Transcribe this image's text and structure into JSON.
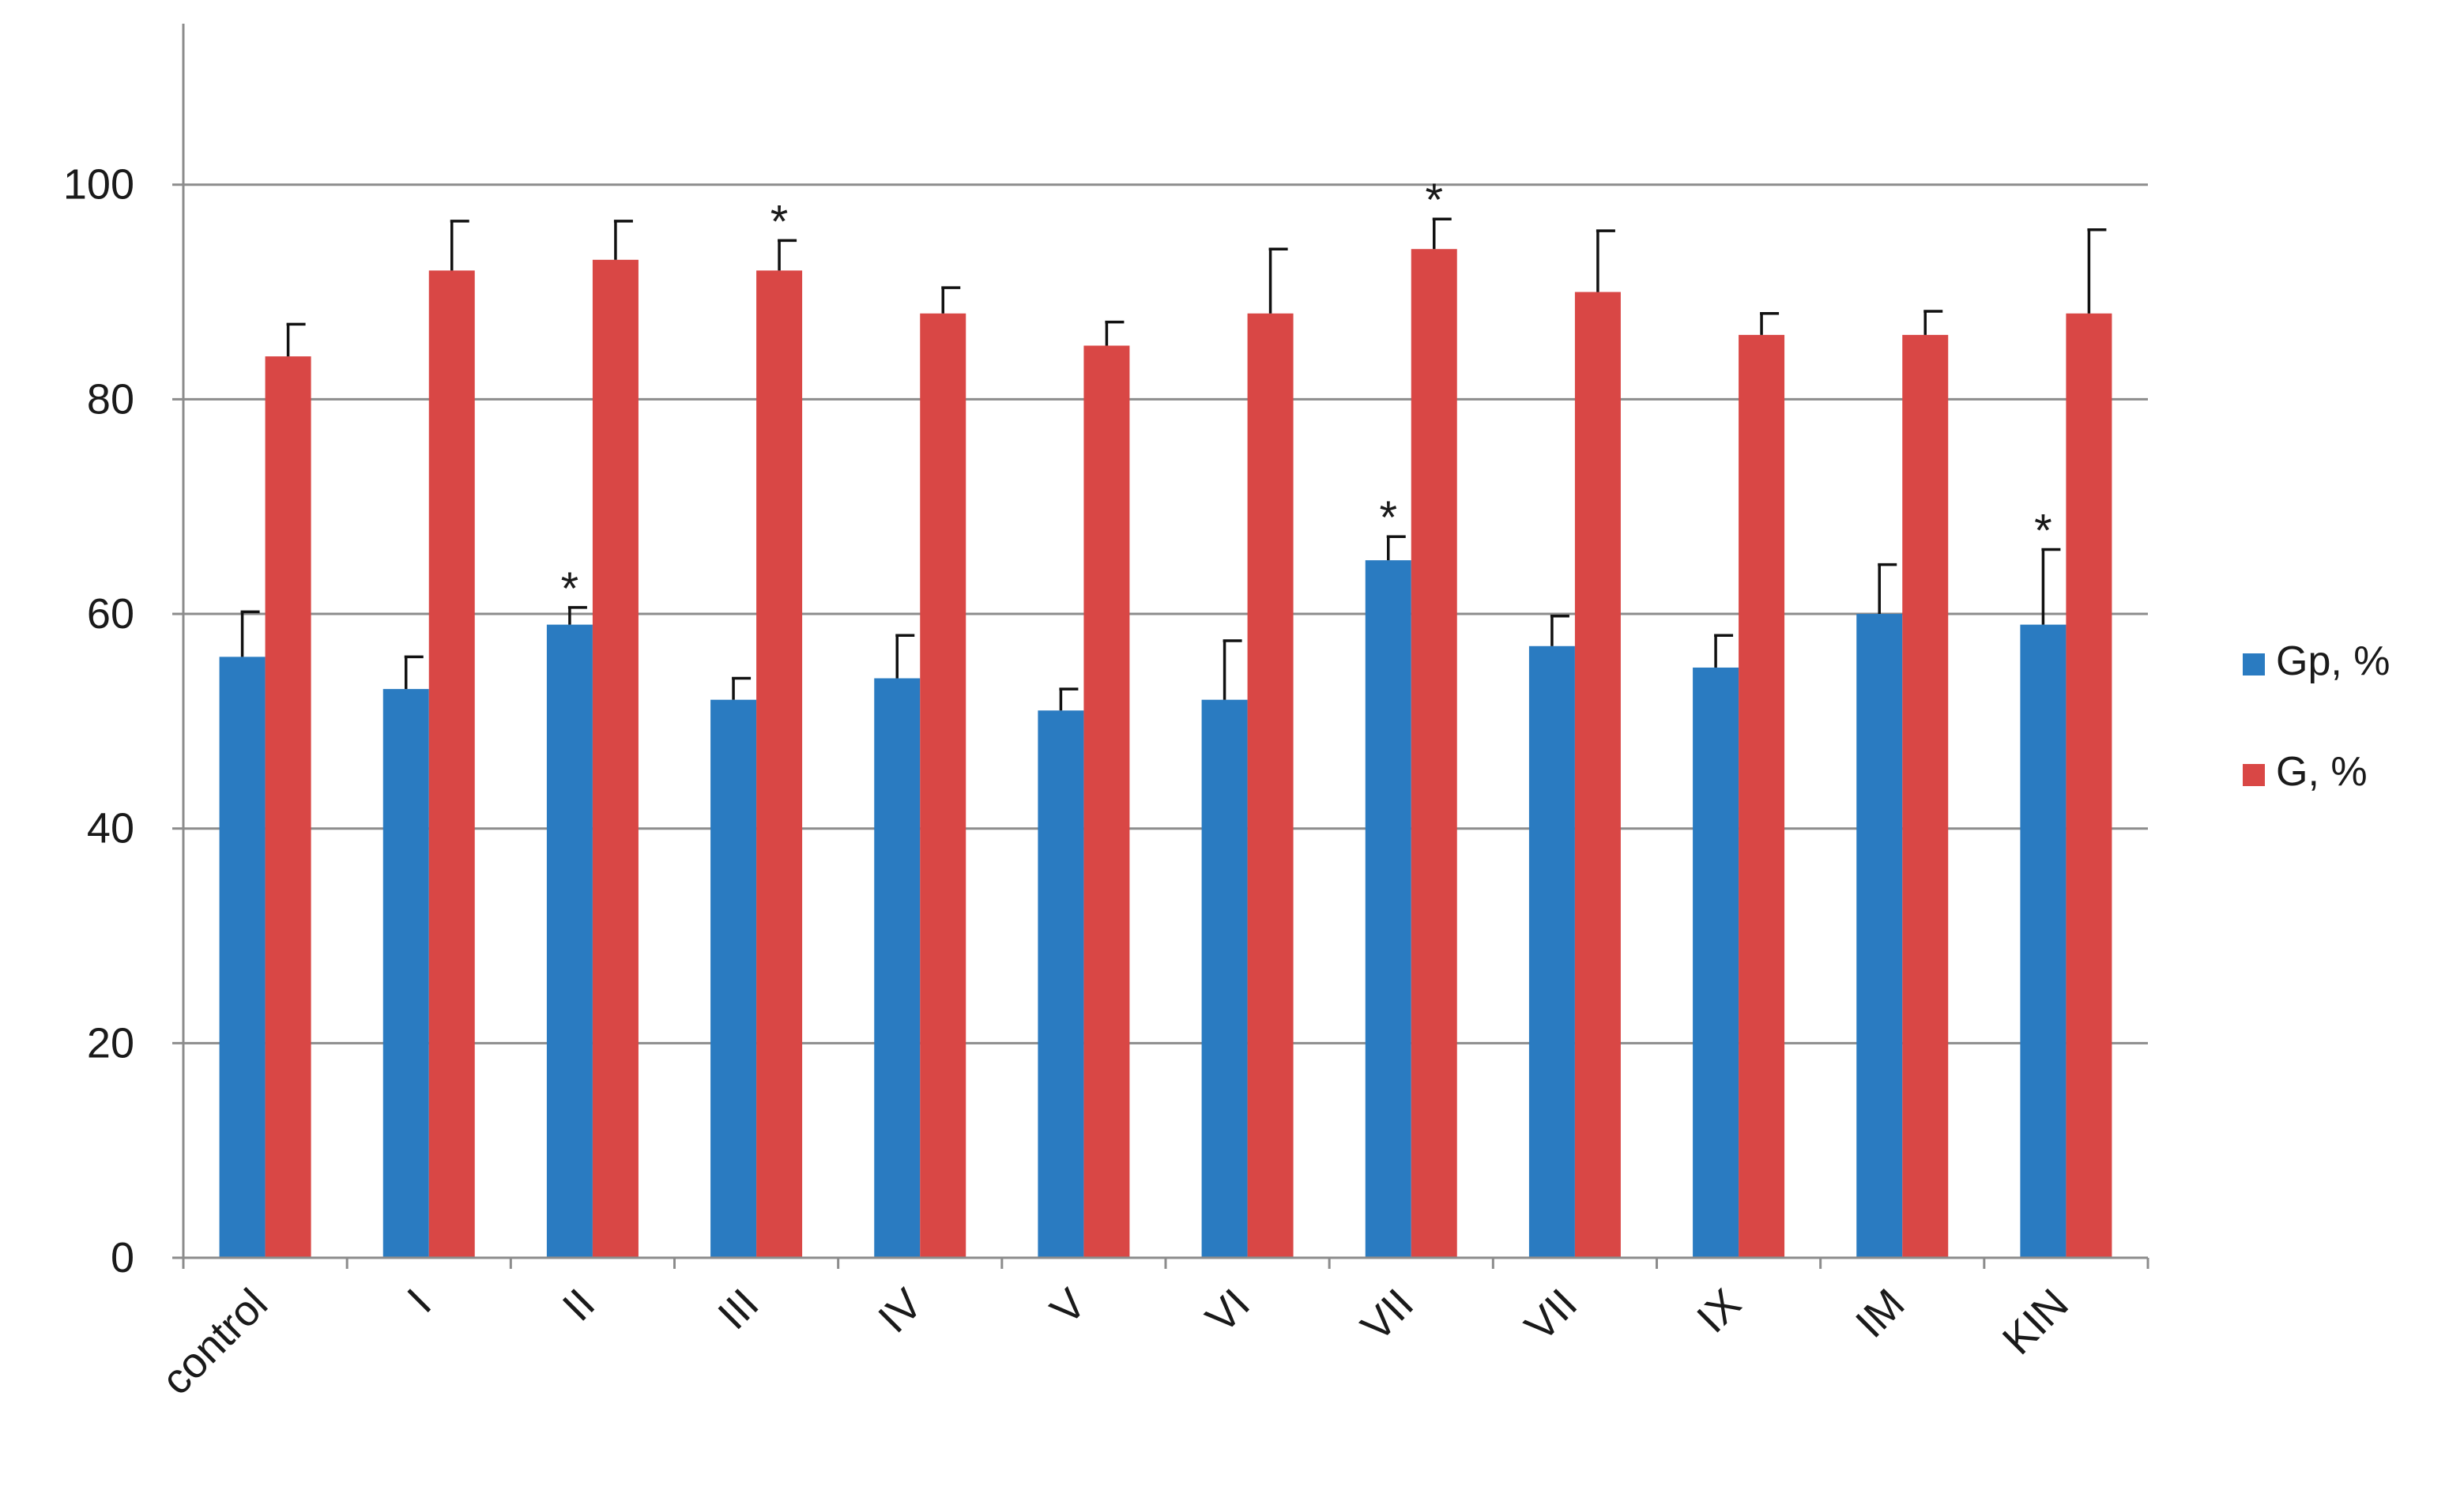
{
  "chart_data": {
    "type": "bar",
    "categories": [
      "control",
      "I",
      "II",
      "III",
      "IV",
      "V",
      "VI",
      "VII",
      "VII",
      "IX",
      "IM",
      "KIN"
    ],
    "series": [
      {
        "name": "Gp, %",
        "color": "#2a7bc1",
        "values": [
          56,
          53,
          59,
          52,
          54,
          51,
          52,
          65,
          57,
          55,
          60,
          59
        ],
        "errors": [
          4.2,
          3.0,
          1.6,
          2.0,
          4.0,
          2.0,
          5.5,
          2.2,
          2.8,
          3.0,
          4.6,
          7.0
        ],
        "significant": [
          false,
          false,
          true,
          false,
          false,
          false,
          false,
          true,
          false,
          false,
          false,
          true
        ]
      },
      {
        "name": "G, %",
        "color": "#d94745",
        "values": [
          84,
          92,
          93,
          92,
          88,
          85,
          88,
          94,
          90,
          86,
          86,
          88
        ],
        "errors": [
          3.0,
          4.6,
          3.6,
          2.8,
          2.4,
          2.2,
          6.0,
          2.8,
          5.7,
          2.0,
          2.2,
          7.8
        ],
        "significant": [
          false,
          false,
          false,
          true,
          false,
          false,
          false,
          true,
          false,
          false,
          false,
          false
        ]
      }
    ],
    "significance_marker": "*",
    "y_ticks": [
      "0",
      "20",
      "40",
      "60",
      "80",
      "100"
    ],
    "ylim": [
      0,
      115
    ],
    "grid": true,
    "legend_position": "right",
    "title": "",
    "xlabel": "",
    "ylabel": ""
  }
}
